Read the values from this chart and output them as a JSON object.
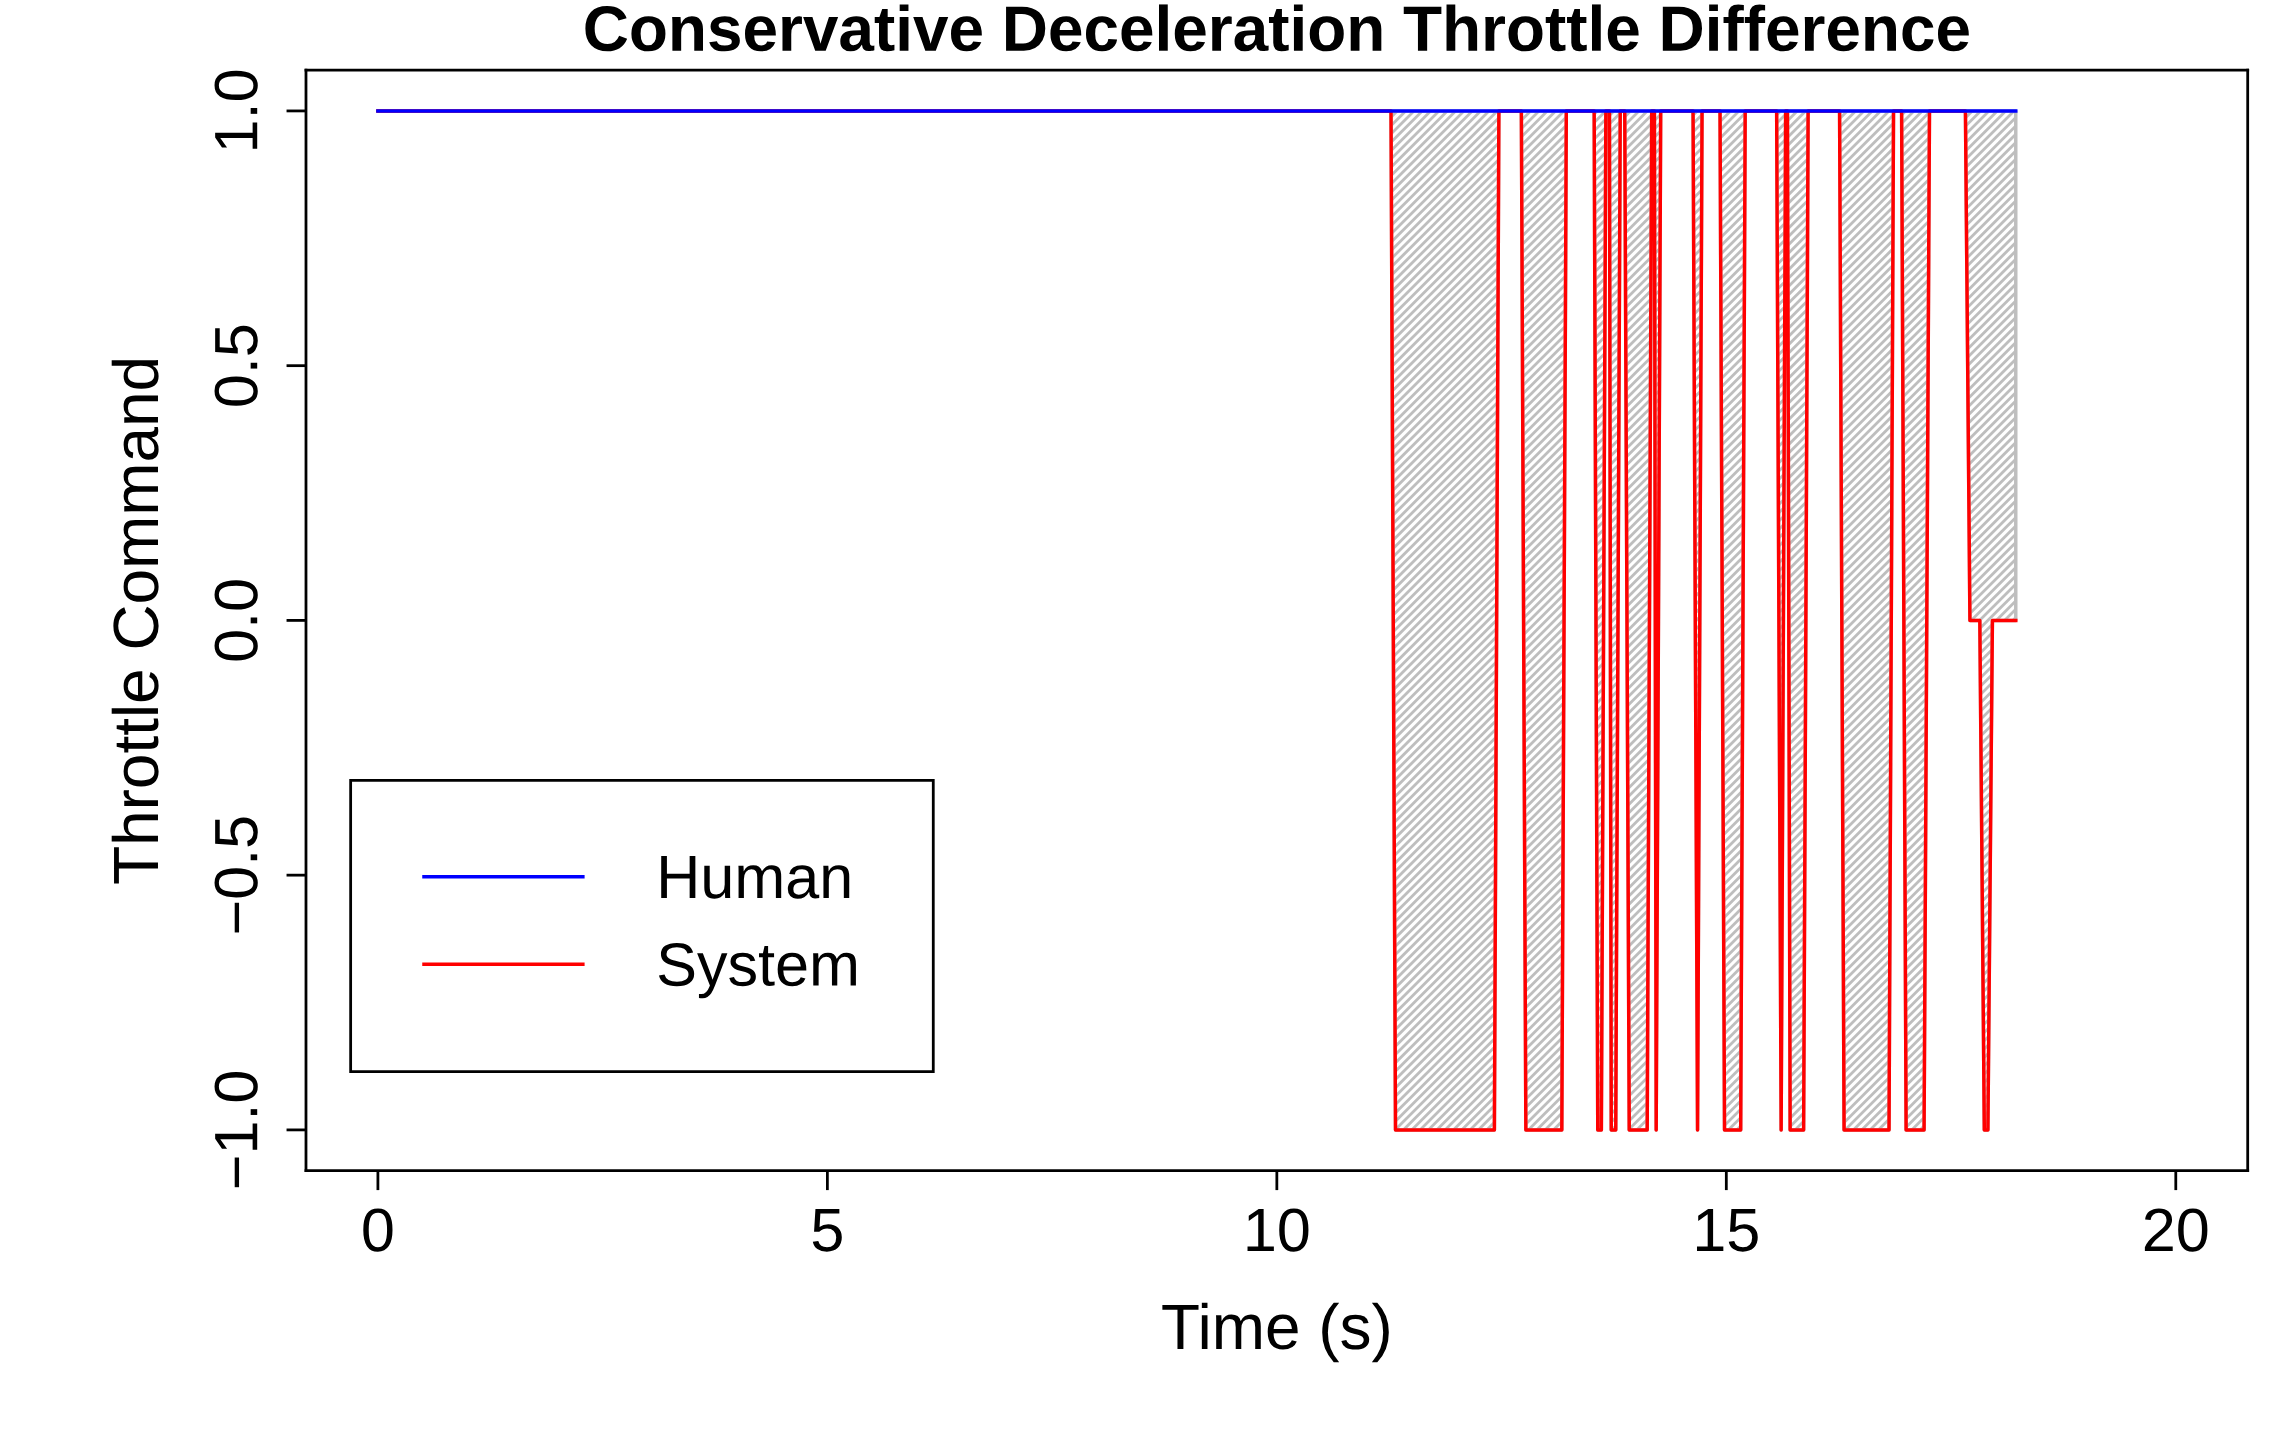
{
  "chart_data": {
    "type": "line",
    "title": "Conservative Deceleration Throttle Difference",
    "xlabel": "Time (s)",
    "ylabel": "Throttle Command",
    "xlim": [
      -0.8,
      20.8
    ],
    "ylim": [
      -1.08,
      1.08
    ],
    "xticks": [
      0,
      5,
      10,
      15,
      20
    ],
    "yticks": [
      {
        "value": -1,
        "label": "−1.0"
      },
      {
        "value": -0.5,
        "label": "−0.5"
      },
      {
        "value": 0,
        "label": "0.0"
      },
      {
        "value": 0.5,
        "label": "0.5"
      },
      {
        "value": 1,
        "label": "1.0"
      }
    ],
    "grid": false,
    "legend": "bottom left",
    "line_style": "solid",
    "marker": "none",
    "series": [
      {
        "name": "Human",
        "color": "#0000ff",
        "x": [
          0,
          18.22
        ],
        "values": [
          1,
          1
        ]
      },
      {
        "name": "System",
        "color": "#ff0000",
        "x": [
          0,
          11.27,
          11.32,
          12.42,
          12.47,
          12.72,
          12.77,
          13.17,
          13.22,
          13.53,
          13.57,
          13.61,
          13.66,
          13.7,
          13.72,
          13.77,
          13.82,
          13.87,
          13.92,
          14.12,
          14.17,
          14.2,
          14.22,
          14.27,
          14.63,
          14.68,
          14.73,
          14.93,
          14.98,
          15.16,
          15.21,
          15.56,
          15.61,
          15.66,
          15.68,
          15.71,
          15.86,
          15.91,
          16.26,
          16.31,
          16.81,
          16.86,
          16.95,
          17.0,
          17.2,
          17.26,
          17.66,
          17.71,
          17.82,
          17.87,
          17.91,
          17.96,
          18.22
        ],
        "values": [
          1,
          1,
          -1,
          -1,
          1,
          1,
          -1,
          -1,
          1,
          1,
          -1,
          -1,
          1,
          1,
          -1,
          -1,
          1,
          1,
          -1,
          -1,
          1,
          1,
          -1,
          1,
          1,
          -1,
          1,
          1,
          -1,
          -1,
          1,
          1,
          -1,
          1,
          1,
          -1,
          -1,
          1,
          1,
          -1,
          -1,
          1,
          1,
          -1,
          -1,
          1,
          1,
          0,
          0,
          -1,
          -1,
          0,
          0
        ],
        "lower": [
          1,
          1,
          -1,
          -1,
          1,
          1,
          -1,
          -1,
          1,
          1,
          -1,
          -1,
          1,
          1,
          -1,
          -1,
          1,
          1,
          -1,
          -1,
          1,
          1,
          -1,
          1,
          1,
          -1,
          1,
          1,
          -1,
          -1,
          1,
          1,
          -1,
          1,
          1,
          -1,
          -1,
          1,
          1,
          -1,
          -1,
          1,
          1,
          -1,
          -1,
          1,
          1,
          0,
          0,
          -1,
          -1,
          0,
          0
        ],
        "upper": [
          1,
          1,
          1,
          1,
          1,
          1,
          1,
          1,
          1,
          1,
          1,
          1,
          1,
          1,
          1,
          1,
          1,
          1,
          1,
          1,
          1,
          1,
          1,
          1,
          1,
          1,
          1,
          1,
          1,
          1,
          1,
          1,
          1,
          1,
          1,
          1,
          1,
          1,
          1,
          1,
          1,
          1,
          1,
          1,
          1,
          1,
          1,
          1,
          1,
          1,
          1,
          1,
          1
        ]
      }
    ]
  }
}
